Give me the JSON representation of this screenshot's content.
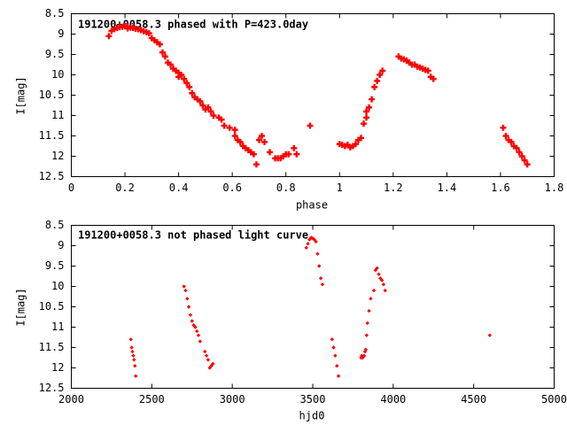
{
  "chart_data": [
    {
      "type": "scatter",
      "title": "191200+0058.3 phased with P=423.0day",
      "xlabel": "phase",
      "ylabel": "I[mag]",
      "xlim": [
        0,
        1.8
      ],
      "ylim": [
        8.5,
        12.5
      ],
      "y_inverted": true,
      "grid": false,
      "x_ticks": [
        "0",
        "0.2",
        "0.4",
        "0.6",
        "0.8",
        "1",
        "1.2",
        "1.4",
        "1.6",
        "1.8"
      ],
      "y_ticks": [
        "8.5",
        "9",
        "9.5",
        "10",
        "10.5",
        "11",
        "11.5",
        "12",
        "12.5"
      ],
      "series": [
        {
          "color": "#ff0000",
          "marker": "plus",
          "x": [
            0.14,
            0.15,
            0.16,
            0.17,
            0.18,
            0.19,
            0.2,
            0.21,
            0.21,
            0.22,
            0.23,
            0.24,
            0.25,
            0.26,
            0.27,
            0.28,
            0.29,
            0.3,
            0.31,
            0.32,
            0.33,
            0.34,
            0.35,
            0.36,
            0.37,
            0.38,
            0.39,
            0.4,
            0.4,
            0.41,
            0.42,
            0.43,
            0.44,
            0.45,
            0.46,
            0.47,
            0.48,
            0.49,
            0.5,
            0.51,
            0.52,
            0.53,
            0.55,
            0.56,
            0.57,
            0.59,
            0.61,
            0.61,
            0.62,
            0.63,
            0.64,
            0.65,
            0.66,
            0.67,
            0.68,
            0.69,
            0.7,
            0.71,
            0.72,
            0.74,
            0.76,
            0.77,
            0.78,
            0.79,
            0.8,
            0.81,
            0.83,
            0.84,
            0.89,
            1.0,
            1.01,
            1.02,
            1.03,
            1.04,
            1.05,
            1.06,
            1.07,
            1.08,
            1.09,
            1.1,
            1.1,
            1.11,
            1.12,
            1.13,
            1.14,
            1.15,
            1.16,
            1.22,
            1.23,
            1.24,
            1.25,
            1.26,
            1.27,
            1.28,
            1.29,
            1.3,
            1.31,
            1.32,
            1.33,
            1.34,
            1.35,
            1.61,
            1.62,
            1.63,
            1.64,
            1.65,
            1.66,
            1.67,
            1.68,
            1.69,
            1.7
          ],
          "y": [
            9.05,
            8.92,
            8.88,
            8.85,
            8.83,
            8.82,
            8.8,
            8.82,
            8.86,
            8.84,
            8.85,
            8.87,
            8.88,
            8.9,
            8.93,
            8.95,
            8.98,
            9.1,
            9.15,
            9.2,
            9.25,
            9.45,
            9.55,
            9.7,
            9.75,
            9.85,
            9.9,
            10.05,
            9.95,
            10.0,
            10.1,
            10.2,
            10.3,
            10.45,
            10.55,
            10.6,
            10.65,
            10.75,
            10.85,
            10.8,
            10.9,
            11.0,
            11.05,
            11.1,
            11.25,
            11.3,
            11.35,
            11.5,
            11.6,
            11.65,
            11.75,
            11.8,
            11.85,
            11.9,
            11.95,
            12.2,
            11.6,
            11.5,
            11.65,
            11.9,
            12.05,
            12.05,
            12.05,
            12.0,
            11.95,
            11.95,
            11.8,
            11.95,
            11.25,
            11.7,
            11.72,
            11.75,
            11.72,
            11.78,
            11.75,
            11.7,
            11.6,
            11.55,
            11.2,
            11.05,
            10.9,
            10.8,
            10.6,
            10.3,
            10.15,
            10.0,
            9.9,
            9.55,
            9.6,
            9.62,
            9.65,
            9.7,
            9.75,
            9.75,
            9.8,
            9.82,
            9.85,
            9.88,
            9.9,
            10.05,
            10.1,
            11.3,
            11.5,
            11.6,
            11.65,
            11.75,
            11.8,
            11.9,
            12.0,
            12.1,
            12.2
          ]
        }
      ]
    },
    {
      "type": "scatter",
      "title": "191200+0058.3 not phased light curve",
      "xlabel": "hjd0",
      "ylabel": "I[mag]",
      "xlim": [
        2000,
        5000
      ],
      "ylim": [
        8.5,
        12.5
      ],
      "y_inverted": true,
      "grid": false,
      "x_ticks": [
        "2000",
        "2500",
        "3000",
        "3500",
        "4000",
        "4500",
        "5000"
      ],
      "y_ticks": [
        "8.5",
        "9",
        "9.5",
        "10",
        "10.5",
        "11",
        "11.5",
        "12",
        "12.5"
      ],
      "series": [
        {
          "color": "#ff0000",
          "marker": "diamond",
          "x": [
            2370,
            2375,
            2380,
            2385,
            2390,
            2395,
            2400,
            2700,
            2710,
            2720,
            2730,
            2740,
            2750,
            2760,
            2770,
            2780,
            2790,
            2800,
            2830,
            2840,
            2850,
            2860,
            2870,
            2880,
            3460,
            3470,
            3480,
            3490,
            3500,
            3510,
            3520,
            3530,
            3540,
            3550,
            3560,
            3620,
            3630,
            3640,
            3650,
            3660,
            3800,
            3805,
            3810,
            3815,
            3820,
            3825,
            3830,
            3835,
            3840,
            3850,
            3860,
            3880,
            3890,
            3900,
            3910,
            3920,
            3930,
            3940,
            3950,
            4600
          ],
          "y": [
            11.3,
            11.5,
            11.6,
            11.7,
            11.8,
            11.95,
            12.2,
            10.0,
            10.1,
            10.3,
            10.5,
            10.7,
            10.85,
            10.95,
            11.0,
            11.1,
            11.2,
            11.35,
            11.6,
            11.7,
            11.8,
            12.0,
            11.95,
            11.9,
            9.05,
            8.95,
            8.85,
            8.8,
            8.82,
            8.85,
            8.9,
            9.2,
            9.5,
            9.8,
            9.95,
            11.3,
            11.5,
            11.7,
            11.95,
            12.2,
            11.75,
            11.7,
            11.75,
            11.72,
            11.7,
            11.6,
            11.55,
            11.2,
            10.9,
            10.6,
            10.3,
            10.1,
            9.6,
            9.55,
            9.7,
            9.8,
            9.85,
            9.95,
            10.1,
            11.2
          ]
        }
      ]
    }
  ]
}
